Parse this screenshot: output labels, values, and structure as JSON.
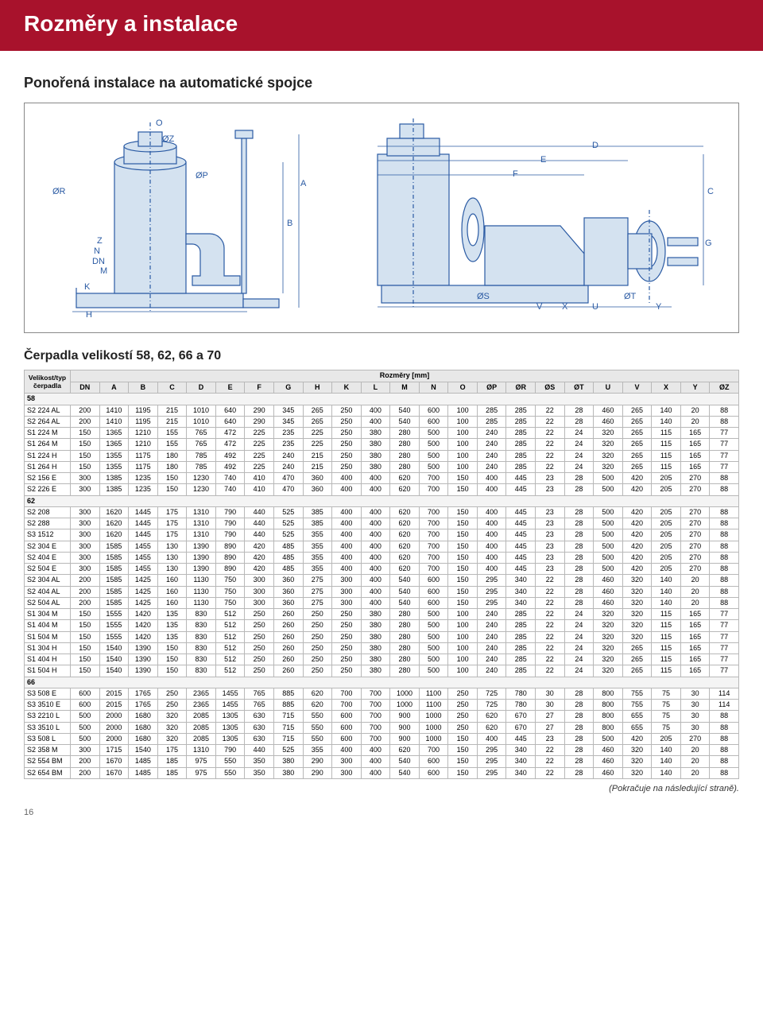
{
  "header": {
    "title": "Rozměry a instalace"
  },
  "section_title": "Ponořená instalace na automatické spojce",
  "sub_title": "Čerpadla velikostí 58, 62, 66 a 70",
  "table_head_left": {
    "line1": "Velikost/typ",
    "line2": "čerpadla"
  },
  "table_head_right": "Rozměry [mm]",
  "columns": [
    "DN",
    "A",
    "B",
    "C",
    "D",
    "E",
    "F",
    "G",
    "H",
    "K",
    "L",
    "M",
    "N",
    "O",
    "ØP",
    "ØR",
    "ØS",
    "ØT",
    "U",
    "V",
    "X",
    "Y",
    "ØZ"
  ],
  "groups": [
    {
      "label": "58",
      "rows": [
        {
          "m": "S2 224 AL",
          "v": [
            200,
            1410,
            1195,
            215,
            1010,
            640,
            290,
            345,
            265,
            250,
            400,
            540,
            600,
            100,
            285,
            285,
            22,
            28,
            460,
            265,
            140,
            20,
            88
          ]
        },
        {
          "m": "S2 264 AL",
          "v": [
            200,
            1410,
            1195,
            215,
            1010,
            640,
            290,
            345,
            265,
            250,
            400,
            540,
            600,
            100,
            285,
            285,
            22,
            28,
            460,
            265,
            140,
            20,
            88
          ]
        },
        {
          "m": "S1 224 M",
          "v": [
            150,
            1365,
            1210,
            155,
            765,
            472,
            225,
            235,
            225,
            250,
            380,
            280,
            500,
            100,
            240,
            285,
            22,
            24,
            320,
            265,
            115,
            165,
            77
          ]
        },
        {
          "m": "S1 264 M",
          "v": [
            150,
            1365,
            1210,
            155,
            765,
            472,
            225,
            235,
            225,
            250,
            380,
            280,
            500,
            100,
            240,
            285,
            22,
            24,
            320,
            265,
            115,
            165,
            77
          ]
        },
        {
          "m": "S1 224 H",
          "v": [
            150,
            1355,
            1175,
            180,
            785,
            492,
            225,
            240,
            215,
            250,
            380,
            280,
            500,
            100,
            240,
            285,
            22,
            24,
            320,
            265,
            115,
            165,
            77
          ]
        },
        {
          "m": "S1 264 H",
          "v": [
            150,
            1355,
            1175,
            180,
            785,
            492,
            225,
            240,
            215,
            250,
            380,
            280,
            500,
            100,
            240,
            285,
            22,
            24,
            320,
            265,
            115,
            165,
            77
          ]
        },
        {
          "m": "S2 156 E",
          "v": [
            300,
            1385,
            1235,
            150,
            1230,
            740,
            410,
            470,
            360,
            400,
            400,
            620,
            700,
            150,
            400,
            445,
            23,
            28,
            500,
            420,
            205,
            270,
            88
          ]
        },
        {
          "m": "S2 226 E",
          "v": [
            300,
            1385,
            1235,
            150,
            1230,
            740,
            410,
            470,
            360,
            400,
            400,
            620,
            700,
            150,
            400,
            445,
            23,
            28,
            500,
            420,
            205,
            270,
            88
          ]
        }
      ]
    },
    {
      "label": "62",
      "rows": [
        {
          "m": "S2 208",
          "v": [
            300,
            1620,
            1445,
            175,
            1310,
            790,
            440,
            525,
            385,
            400,
            400,
            620,
            700,
            150,
            400,
            445,
            23,
            28,
            500,
            420,
            205,
            270,
            88
          ]
        },
        {
          "m": "S2 288",
          "v": [
            300,
            1620,
            1445,
            175,
            1310,
            790,
            440,
            525,
            385,
            400,
            400,
            620,
            700,
            150,
            400,
            445,
            23,
            28,
            500,
            420,
            205,
            270,
            88
          ]
        },
        {
          "m": "S3 1512",
          "v": [
            300,
            1620,
            1445,
            175,
            1310,
            790,
            440,
            525,
            355,
            400,
            400,
            620,
            700,
            150,
            400,
            445,
            23,
            28,
            500,
            420,
            205,
            270,
            88
          ]
        },
        {
          "m": "S2 304 E",
          "v": [
            300,
            1585,
            1455,
            130,
            1390,
            890,
            420,
            485,
            355,
            400,
            400,
            620,
            700,
            150,
            400,
            445,
            23,
            28,
            500,
            420,
            205,
            270,
            88
          ]
        },
        {
          "m": "S2 404 E",
          "v": [
            300,
            1585,
            1455,
            130,
            1390,
            890,
            420,
            485,
            355,
            400,
            400,
            620,
            700,
            150,
            400,
            445,
            23,
            28,
            500,
            420,
            205,
            270,
            88
          ]
        },
        {
          "m": "S2 504 E",
          "v": [
            300,
            1585,
            1455,
            130,
            1390,
            890,
            420,
            485,
            355,
            400,
            400,
            620,
            700,
            150,
            400,
            445,
            23,
            28,
            500,
            420,
            205,
            270,
            88
          ]
        },
        {
          "m": "S2 304 AL",
          "v": [
            200,
            1585,
            1425,
            160,
            1130,
            750,
            300,
            360,
            275,
            300,
            400,
            540,
            600,
            150,
            295,
            340,
            22,
            28,
            460,
            320,
            140,
            20,
            88
          ]
        },
        {
          "m": "S2 404 AL",
          "v": [
            200,
            1585,
            1425,
            160,
            1130,
            750,
            300,
            360,
            275,
            300,
            400,
            540,
            600,
            150,
            295,
            340,
            22,
            28,
            460,
            320,
            140,
            20,
            88
          ]
        },
        {
          "m": "S2 504 AL",
          "v": [
            200,
            1585,
            1425,
            160,
            1130,
            750,
            300,
            360,
            275,
            300,
            400,
            540,
            600,
            150,
            295,
            340,
            22,
            28,
            460,
            320,
            140,
            20,
            88
          ]
        },
        {
          "m": "S1 304 M",
          "v": [
            150,
            1555,
            1420,
            135,
            830,
            512,
            250,
            260,
            250,
            250,
            380,
            280,
            500,
            100,
            240,
            285,
            22,
            24,
            320,
            320,
            115,
            165,
            77
          ]
        },
        {
          "m": "S1 404 M",
          "v": [
            150,
            1555,
            1420,
            135,
            830,
            512,
            250,
            260,
            250,
            250,
            380,
            280,
            500,
            100,
            240,
            285,
            22,
            24,
            320,
            320,
            115,
            165,
            77
          ]
        },
        {
          "m": "S1 504 M",
          "v": [
            150,
            1555,
            1420,
            135,
            830,
            512,
            250,
            260,
            250,
            250,
            380,
            280,
            500,
            100,
            240,
            285,
            22,
            24,
            320,
            320,
            115,
            165,
            77
          ]
        },
        {
          "m": "S1 304 H",
          "v": [
            150,
            1540,
            1390,
            150,
            830,
            512,
            250,
            260,
            250,
            250,
            380,
            280,
            500,
            100,
            240,
            285,
            22,
            24,
            320,
            265,
            115,
            165,
            77
          ]
        },
        {
          "m": "S1 404 H",
          "v": [
            150,
            1540,
            1390,
            150,
            830,
            512,
            250,
            260,
            250,
            250,
            380,
            280,
            500,
            100,
            240,
            285,
            22,
            24,
            320,
            265,
            115,
            165,
            77
          ]
        },
        {
          "m": "S1 504 H",
          "v": [
            150,
            1540,
            1390,
            150,
            830,
            512,
            250,
            260,
            250,
            250,
            380,
            280,
            500,
            100,
            240,
            285,
            22,
            24,
            320,
            265,
            115,
            165,
            77
          ]
        }
      ]
    },
    {
      "label": "66",
      "rows": [
        {
          "m": "S3 508 E",
          "v": [
            600,
            2015,
            1765,
            250,
            2365,
            1455,
            765,
            885,
            620,
            700,
            700,
            1000,
            1100,
            250,
            725,
            780,
            30,
            28,
            800,
            755,
            75,
            30,
            114
          ]
        },
        {
          "m": "S3 3510 E",
          "v": [
            600,
            2015,
            1765,
            250,
            2365,
            1455,
            765,
            885,
            620,
            700,
            700,
            1000,
            1100,
            250,
            725,
            780,
            30,
            28,
            800,
            755,
            75,
            30,
            114
          ]
        },
        {
          "m": "S3 2210 L",
          "v": [
            500,
            2000,
            1680,
            320,
            2085,
            1305,
            630,
            715,
            550,
            600,
            700,
            900,
            1000,
            250,
            620,
            670,
            27,
            28,
            800,
            655,
            75,
            30,
            88
          ]
        },
        {
          "m": "S3 3510 L",
          "v": [
            500,
            2000,
            1680,
            320,
            2085,
            1305,
            630,
            715,
            550,
            600,
            700,
            900,
            1000,
            250,
            620,
            670,
            27,
            28,
            800,
            655,
            75,
            30,
            88
          ]
        },
        {
          "m": "S3 508 L",
          "v": [
            500,
            2000,
            1680,
            320,
            2085,
            1305,
            630,
            715,
            550,
            600,
            700,
            900,
            1000,
            150,
            400,
            445,
            23,
            28,
            500,
            420,
            205,
            270,
            88
          ]
        },
        {
          "m": "S2 358 M",
          "v": [
            300,
            1715,
            1540,
            175,
            1310,
            790,
            440,
            525,
            355,
            400,
            400,
            620,
            700,
            150,
            295,
            340,
            22,
            28,
            460,
            320,
            140,
            20,
            88
          ]
        },
        {
          "m": "S2 554 BM",
          "v": [
            200,
            1670,
            1485,
            185,
            975,
            550,
            350,
            380,
            290,
            300,
            400,
            540,
            600,
            150,
            295,
            340,
            22,
            28,
            460,
            320,
            140,
            20,
            88
          ]
        },
        {
          "m": "S2 654 BM",
          "v": [
            200,
            1670,
            1485,
            185,
            975,
            550,
            350,
            380,
            290,
            300,
            400,
            540,
            600,
            150,
            295,
            340,
            22,
            28,
            460,
            320,
            140,
            20,
            88
          ]
        }
      ]
    }
  ],
  "footnote": "(Pokračuje na následující straně).",
  "page_num": "16",
  "drawing": {
    "labels_front": [
      "O",
      "ØZ",
      "ØR",
      "ØP",
      "A",
      "B",
      "N",
      "Z",
      "DN",
      "M",
      "K",
      "H"
    ],
    "labels_side": [
      "D",
      "E",
      "F",
      "ØS",
      "V",
      "X",
      "U",
      "ØT",
      "Y",
      "G",
      "C"
    ],
    "line_color": "#2a5aa3",
    "body_fill": "#d4e2f0"
  },
  "style": {
    "header_bg": "#a8122c",
    "header_fg": "#ffffff",
    "border_color": "#b8b8b8",
    "th_bg": "#e8e8e8",
    "section_bg": "#f4f4f4"
  }
}
